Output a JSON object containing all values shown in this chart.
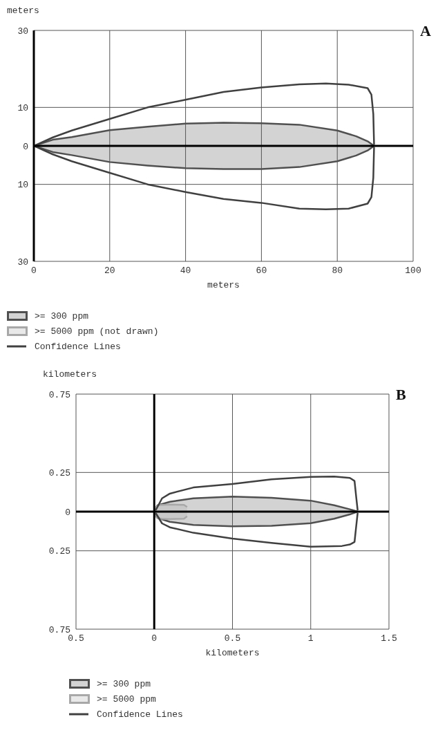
{
  "chart_data": [
    {
      "type": "line",
      "title": "A",
      "xlabel": "meters",
      "ylabel": "meters",
      "xlim": [
        0,
        100
      ],
      "xticks": [
        0,
        20,
        40,
        60,
        80,
        100
      ],
      "ylim": [
        -30,
        30
      ],
      "yticks": [
        {
          "value": -30,
          "label": "30"
        },
        {
          "value": -10,
          "label": "10"
        },
        0,
        10,
        30
      ],
      "grid": true,
      "legend": "bottom",
      "series": [
        {
          "name": ">= 300 ppm",
          "type": "area",
          "color": "#505050",
          "x": [
            0,
            5,
            10,
            20,
            30,
            40,
            50,
            60,
            70,
            80,
            85,
            88,
            89.7
          ],
          "values": [
            0,
            1.6,
            2.3,
            4.1,
            5,
            5.8,
            6,
            5.9,
            5.5,
            4,
            2.5,
            1.2,
            0
          ]
        },
        {
          "type": "area",
          "color": "#505050",
          "x": [
            0,
            5,
            10,
            20,
            30,
            40,
            50,
            60,
            70,
            80,
            85,
            88,
            89.7
          ],
          "values": [
            0,
            -1.6,
            -2.4,
            -4.2,
            -5.1,
            -5.8,
            -6,
            -6,
            -5.5,
            -4,
            -2.5,
            -1.2,
            0
          ]
        },
        {
          "name": ">= 5000 ppm (not drawn)",
          "type": "area",
          "color": "#a8a8a8"
        },
        {
          "name": "Confidence Lines",
          "type": "line",
          "color": "#404040",
          "x": [
            0,
            5,
            10,
            20,
            30,
            40,
            50,
            60,
            70,
            77,
            83,
            88,
            89,
            89.5,
            89.7
          ],
          "values": [
            0,
            2.2,
            4,
            7,
            10,
            12,
            14,
            15.2,
            16,
            16.2,
            15.9,
            15,
            13.3,
            8.3,
            0.3
          ]
        },
        {
          "type": "line",
          "color": "#404040",
          "x": [
            0,
            5,
            10,
            20,
            30,
            40,
            50,
            60,
            70,
            77,
            83,
            88,
            89,
            89.5,
            89.7
          ],
          "values": [
            0,
            -2.2,
            -4,
            -7,
            -10,
            -12,
            -13.8,
            -14.8,
            -16.3,
            -16.5,
            -16.3,
            -15,
            -13.3,
            -8.3,
            -0.3
          ]
        }
      ]
    },
    {
      "type": "line",
      "title": "B",
      "xlabel": "kilometers",
      "ylabel": "kilometers",
      "xlim": [
        -0.5,
        1.5
      ],
      "xticks": [
        {
          "value": -0.5,
          "label": "0.5"
        },
        0,
        0.5,
        1,
        1.5
      ],
      "ylim": [
        -0.75,
        0.75
      ],
      "yticks": [
        {
          "value": -0.75,
          "label": "0.75"
        },
        {
          "value": -0.25,
          "label": "0.25"
        },
        0,
        0.25,
        0.75
      ],
      "grid": true,
      "legend": "bottom",
      "series": [
        {
          "name": ">= 300 ppm",
          "type": "area",
          "color": "#505050",
          "x": [
            0,
            0.02,
            0.1,
            0.25,
            0.5,
            0.75,
            1,
            1.15,
            1.25,
            1.3
          ],
          "values": [
            0,
            0.04,
            0.063,
            0.085,
            0.096,
            0.088,
            0.07,
            0.041,
            0.015,
            0
          ]
        },
        {
          "type": "area",
          "color": "#505050",
          "x": [
            0,
            0.02,
            0.1,
            0.25,
            0.5,
            0.75,
            1,
            1.15,
            1.25,
            1.3
          ],
          "values": [
            0,
            -0.04,
            -0.065,
            -0.085,
            -0.094,
            -0.09,
            -0.074,
            -0.045,
            -0.018,
            0
          ]
        },
        {
          "name": ">= 5000 ppm",
          "type": "area",
          "color": "#a8a8a8",
          "x": [
            0,
            0.01,
            0.03,
            0.1,
            0.19,
            0.21
          ],
          "values": [
            0,
            0.03,
            0.042,
            0.045,
            0.043,
            0.03
          ]
        },
        {
          "type": "area",
          "color": "#a8a8a8",
          "x": [
            0,
            0.01,
            0.03,
            0.1,
            0.19,
            0.21
          ],
          "values": [
            0,
            -0.032,
            -0.045,
            -0.047,
            -0.045,
            -0.03
          ]
        },
        {
          "name": "Confidence Lines",
          "type": "line",
          "color": "#404040",
          "x": [
            0.01,
            0.05,
            0.1,
            0.25,
            0.5,
            0.75,
            1,
            1.15,
            1.25,
            1.28,
            1.29,
            1.3
          ],
          "values": [
            0.01,
            0.085,
            0.115,
            0.154,
            0.176,
            0.206,
            0.222,
            0.224,
            0.215,
            0.196,
            0.1,
            0.008
          ]
        },
        {
          "type": "line",
          "color": "#404040",
          "x": [
            0.01,
            0.05,
            0.1,
            0.25,
            0.5,
            0.75,
            1,
            1.2,
            1.25,
            1.28,
            1.29,
            1.3
          ],
          "values": [
            -0.01,
            -0.075,
            -0.1,
            -0.135,
            -0.172,
            -0.2,
            -0.224,
            -0.219,
            -0.21,
            -0.194,
            -0.1,
            -0.008
          ]
        }
      ]
    }
  ]
}
